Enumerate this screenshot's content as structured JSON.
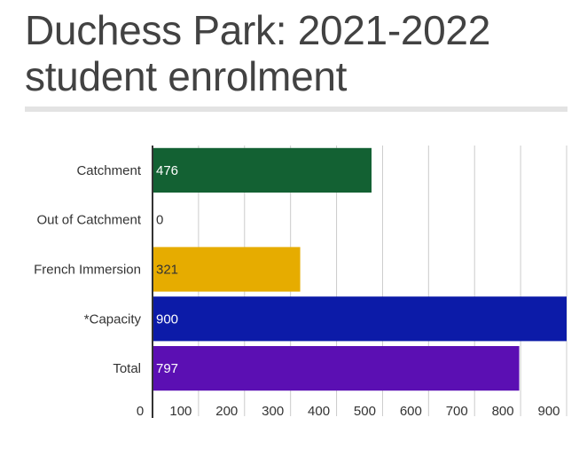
{
  "title": {
    "line1": "Duchess Park: 2021-2022",
    "line2": "student enrolment"
  },
  "chart_data": {
    "type": "bar",
    "orientation": "horizontal",
    "title": "Duchess Park: 2021-2022 student enrolment",
    "categories": [
      "Catchment",
      "Out of Catchment",
      "French Immersion",
      "*Capacity",
      "Total"
    ],
    "values": [
      476,
      0,
      321,
      900,
      797
    ],
    "colors": [
      "#136133",
      "#136133",
      "#e6ac00",
      "#0c1ba8",
      "#5b0fb3"
    ],
    "data_label_colors": [
      "#ffffff",
      "#333333",
      "#333333",
      "#ffffff",
      "#ffffff"
    ],
    "xticks": [
      0,
      100,
      200,
      300,
      400,
      500,
      600,
      700,
      800,
      900
    ],
    "xlim": [
      0,
      900
    ],
    "xlabel": "",
    "ylabel": "",
    "grid": true,
    "legend": "none"
  }
}
